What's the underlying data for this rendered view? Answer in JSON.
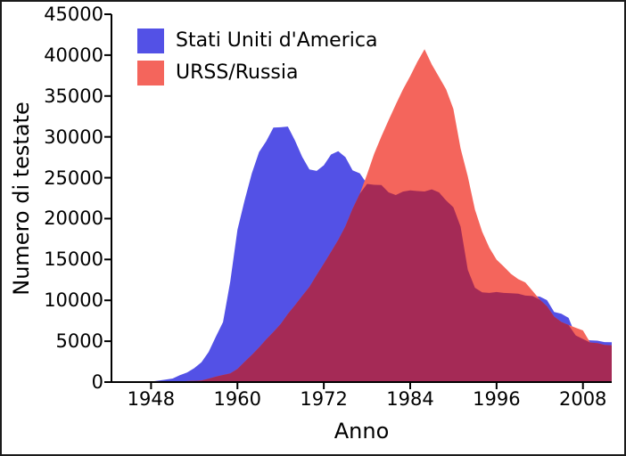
{
  "figure": {
    "background": "#ffffff",
    "border_color": "#1a1a1a"
  },
  "chart_data": {
    "type": "area",
    "title": "",
    "xlabel": "Anno",
    "ylabel": "Numero di testate",
    "grid": false,
    "legend_position": "top-left",
    "x_domain": [
      1942.5,
      2012
    ],
    "ylim": [
      0,
      45000
    ],
    "x_tick_years": [
      1948,
      1960,
      1972,
      1984,
      1996,
      2008
    ],
    "x_tick_labels": [
      "1948",
      "1960",
      "1972",
      "1984",
      "1996",
      "2008"
    ],
    "y_tick_values": [
      0,
      5000,
      10000,
      15000,
      20000,
      25000,
      30000,
      35000,
      40000,
      45000
    ],
    "y_tick_labels": [
      "0",
      "5000",
      "10000",
      "15000",
      "20000",
      "25000",
      "30000",
      "35000",
      "40000",
      "45000"
    ],
    "years": [
      1945,
      1946,
      1947,
      1948,
      1949,
      1950,
      1951,
      1952,
      1953,
      1954,
      1955,
      1956,
      1957,
      1958,
      1959,
      1960,
      1961,
      1962,
      1963,
      1964,
      1965,
      1966,
      1967,
      1968,
      1969,
      1970,
      1971,
      1972,
      1973,
      1974,
      1975,
      1976,
      1977,
      1978,
      1979,
      1980,
      1981,
      1982,
      1983,
      1984,
      1985,
      1986,
      1987,
      1988,
      1989,
      1990,
      1991,
      1992,
      1993,
      1994,
      1995,
      1996,
      1997,
      1998,
      1999,
      2000,
      2001,
      2002,
      2003,
      2004,
      2005,
      2006,
      2007,
      2008,
      2009,
      2010,
      2011,
      2012
    ],
    "series": [
      {
        "name": "Stati Uniti d'America",
        "color": "#5351e6",
        "values": [
          2,
          9,
          13,
          50,
          170,
          299,
          438,
          841,
          1169,
          1703,
          2422,
          3692,
          5543,
          7345,
          12298,
          18638,
          22229,
          25540,
          28133,
          29463,
          31139,
          31175,
          31255,
          29561,
          27552,
          26008,
          25830,
          26516,
          27835,
          28245,
          27519,
          25914,
          25542,
          24243,
          24138,
          24104,
          23208,
          22886,
          23305,
          23459,
          23368,
          23317,
          23575,
          23205,
          22217,
          21392,
          19008,
          13731,
          11536,
          10979,
          10904,
          11011,
          10903,
          10871,
          10824,
          10577,
          10526,
          10457,
          10027,
          8570,
          8360,
          7853,
          5709,
          5273,
          5113,
          5066,
          4897,
          4881
        ]
      },
      {
        "name": "URSS/Russia",
        "color": "#f4655c",
        "values": [
          0,
          0,
          0,
          0,
          1,
          5,
          25,
          50,
          120,
          150,
          200,
          426,
          660,
          869,
          1060,
          1605,
          2471,
          3322,
          4238,
          5221,
          6129,
          7089,
          8339,
          9399,
          10538,
          11643,
          13092,
          14478,
          15915,
          17385,
          19055,
          21205,
          23044,
          25393,
          27935,
          30062,
          32049,
          33952,
          35804,
          37431,
          39197,
          40723,
          38859,
          37333,
          35805,
          33417,
          28595,
          25155,
          21101,
          18399,
          16423,
          14978,
          14135,
          13240,
          12595,
          12188,
          11152,
          10089,
          9273,
          8010,
          7360,
          6988,
          6643,
          6318,
          4834,
          4765,
          4540,
          4502
        ]
      }
    ],
    "overlap_color": "#a52a56",
    "axis_color": "#000000"
  }
}
